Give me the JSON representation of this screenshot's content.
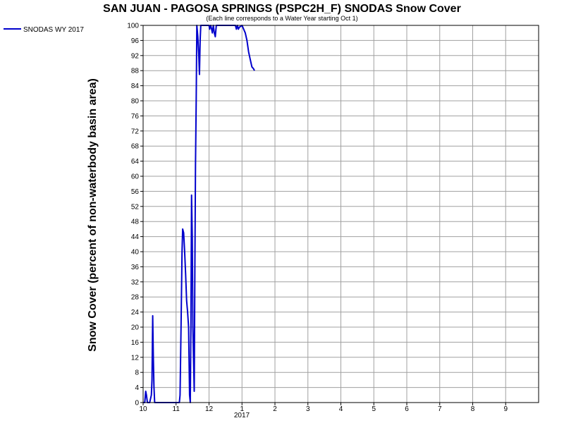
{
  "chart_data": {
    "type": "line",
    "title": "SAN JUAN - PAGOSA SPRINGS (PSPC2H_F) SNODAS Snow Cover",
    "subtitle": "(Each line corresponds to a Water Year starting Oct 1)",
    "ylabel": "Snow Cover (percent of non-waterbody basin area)",
    "xlabel": "",
    "year_label": "2017",
    "xlim": [
      0,
      12
    ],
    "ylim": [
      0,
      100
    ],
    "x_ticks": [
      {
        "x": 0,
        "label": "10"
      },
      {
        "x": 1,
        "label": "11"
      },
      {
        "x": 2,
        "label": "12"
      },
      {
        "x": 3,
        "label": "1"
      },
      {
        "x": 4,
        "label": "2"
      },
      {
        "x": 5,
        "label": "3"
      },
      {
        "x": 6,
        "label": "4"
      },
      {
        "x": 7,
        "label": "5"
      },
      {
        "x": 8,
        "label": "6"
      },
      {
        "x": 9,
        "label": "7"
      },
      {
        "x": 10,
        "label": "8"
      },
      {
        "x": 11,
        "label": "9"
      }
    ],
    "y_ticks": [
      0,
      4,
      8,
      12,
      16,
      20,
      24,
      28,
      32,
      36,
      40,
      44,
      48,
      52,
      56,
      60,
      64,
      68,
      72,
      76,
      80,
      84,
      88,
      92,
      96,
      100
    ],
    "grid": true,
    "legend_position": "top-left outside",
    "series": [
      {
        "name": "SNODAS WY 2017",
        "color": "#0000cc",
        "points": [
          [
            0.0,
            0
          ],
          [
            0.05,
            0
          ],
          [
            0.08,
            3
          ],
          [
            0.1,
            2
          ],
          [
            0.13,
            0
          ],
          [
            0.2,
            0
          ],
          [
            0.25,
            2
          ],
          [
            0.27,
            6
          ],
          [
            0.29,
            23
          ],
          [
            0.31,
            12
          ],
          [
            0.33,
            4
          ],
          [
            0.35,
            0
          ],
          [
            0.5,
            0
          ],
          [
            1.0,
            0
          ],
          [
            1.1,
            0
          ],
          [
            1.12,
            2
          ],
          [
            1.15,
            20
          ],
          [
            1.18,
            40
          ],
          [
            1.2,
            46
          ],
          [
            1.23,
            45
          ],
          [
            1.26,
            40
          ],
          [
            1.29,
            34
          ],
          [
            1.32,
            27
          ],
          [
            1.35,
            24
          ],
          [
            1.38,
            20
          ],
          [
            1.41,
            2
          ],
          [
            1.43,
            0
          ],
          [
            1.45,
            20
          ],
          [
            1.47,
            55
          ],
          [
            1.49,
            44
          ],
          [
            1.51,
            20
          ],
          [
            1.53,
            12
          ],
          [
            1.55,
            3
          ],
          [
            1.57,
            35
          ],
          [
            1.59,
            63
          ],
          [
            1.61,
            80
          ],
          [
            1.63,
            100
          ],
          [
            1.66,
            97
          ],
          [
            1.69,
            92
          ],
          [
            1.71,
            87
          ],
          [
            1.73,
            96
          ],
          [
            1.75,
            100
          ],
          [
            1.85,
            100
          ],
          [
            2.0,
            100
          ],
          [
            2.02,
            99
          ],
          [
            2.05,
            100
          ],
          [
            2.08,
            99
          ],
          [
            2.1,
            98
          ],
          [
            2.13,
            100
          ],
          [
            2.16,
            98
          ],
          [
            2.19,
            97
          ],
          [
            2.22,
            100
          ],
          [
            2.5,
            100
          ],
          [
            2.8,
            100
          ],
          [
            2.83,
            99
          ],
          [
            2.86,
            100
          ],
          [
            2.89,
            99
          ],
          [
            2.92,
            99.5
          ],
          [
            3.0,
            100
          ],
          [
            3.05,
            99
          ],
          [
            3.1,
            98
          ],
          [
            3.15,
            96
          ],
          [
            3.2,
            93
          ],
          [
            3.25,
            91
          ],
          [
            3.3,
            89
          ],
          [
            3.35,
            88.5
          ],
          [
            3.38,
            88
          ]
        ]
      }
    ]
  }
}
